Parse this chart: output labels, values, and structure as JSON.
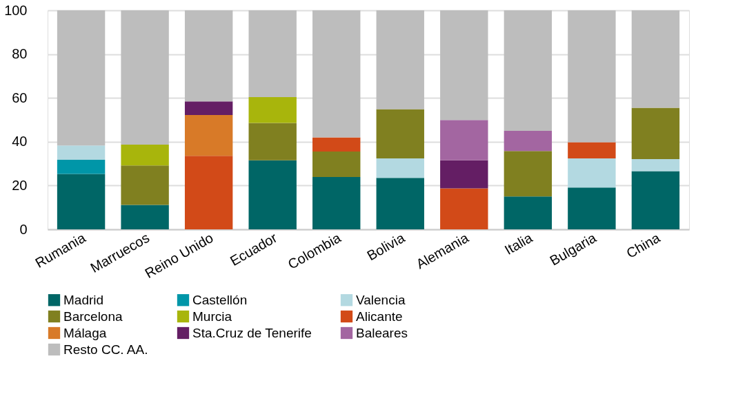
{
  "chart_data": {
    "type": "bar",
    "stacked": true,
    "categories": [
      "Rumania",
      "Marruecos",
      "Reino Unido",
      "Ecuador",
      "Colombia",
      "Bolivia",
      "Alemania",
      "Italia",
      "Bulgaria",
      "China"
    ],
    "series": [
      {
        "name": "Madrid",
        "color": "#006666",
        "values": [
          25.3,
          11.2,
          null,
          31.5,
          23.9,
          23.5,
          null,
          15.0,
          19.1,
          26.6
        ]
      },
      {
        "name": "Castellón",
        "color": "#0096a8",
        "values": [
          6.5,
          null,
          null,
          null,
          null,
          null,
          null,
          null,
          null,
          null
        ]
      },
      {
        "name": "Valencia",
        "color": "#b3d9e1",
        "values": [
          6.5,
          null,
          null,
          null,
          null,
          8.9,
          null,
          null,
          13.3,
          5.5
        ]
      },
      {
        "name": "Barcelona",
        "color": "#808020",
        "values": [
          null,
          18.0,
          null,
          17.1,
          11.6,
          22.5,
          null,
          20.8,
          null,
          23.4
        ]
      },
      {
        "name": "Murcia",
        "color": "#a8b50c",
        "values": [
          null,
          9.5,
          null,
          11.8,
          null,
          null,
          null,
          null,
          null,
          null
        ]
      },
      {
        "name": "Alicante",
        "color": "#d24a18",
        "values": [
          null,
          null,
          33.6,
          null,
          6.5,
          null,
          18.7,
          null,
          7.4,
          null
        ]
      },
      {
        "name": "Málaga",
        "color": "#d87a28",
        "values": [
          null,
          null,
          18.6,
          null,
          null,
          null,
          null,
          null,
          null,
          null
        ]
      },
      {
        "name": "Sta.Cruz de Tenerife",
        "color": "#641e64",
        "values": [
          null,
          null,
          6.2,
          null,
          null,
          null,
          12.8,
          null,
          null,
          null
        ]
      },
      {
        "name": "Baleares",
        "color": "#a366a1",
        "values": [
          null,
          null,
          null,
          null,
          null,
          null,
          18.4,
          9.2,
          null,
          null
        ]
      },
      {
        "name": "Resto CC. AA.",
        "color": "#bdbdbd",
        "values": [
          61.7,
          61.3,
          41.6,
          39.6,
          58.0,
          45.1,
          50.1,
          55.0,
          60.2,
          44.5
        ]
      }
    ],
    "ylim": [
      0,
      100
    ],
    "yticks": [
      0,
      20,
      40,
      60,
      80,
      100
    ],
    "grid": "y",
    "legend": "bottom"
  }
}
